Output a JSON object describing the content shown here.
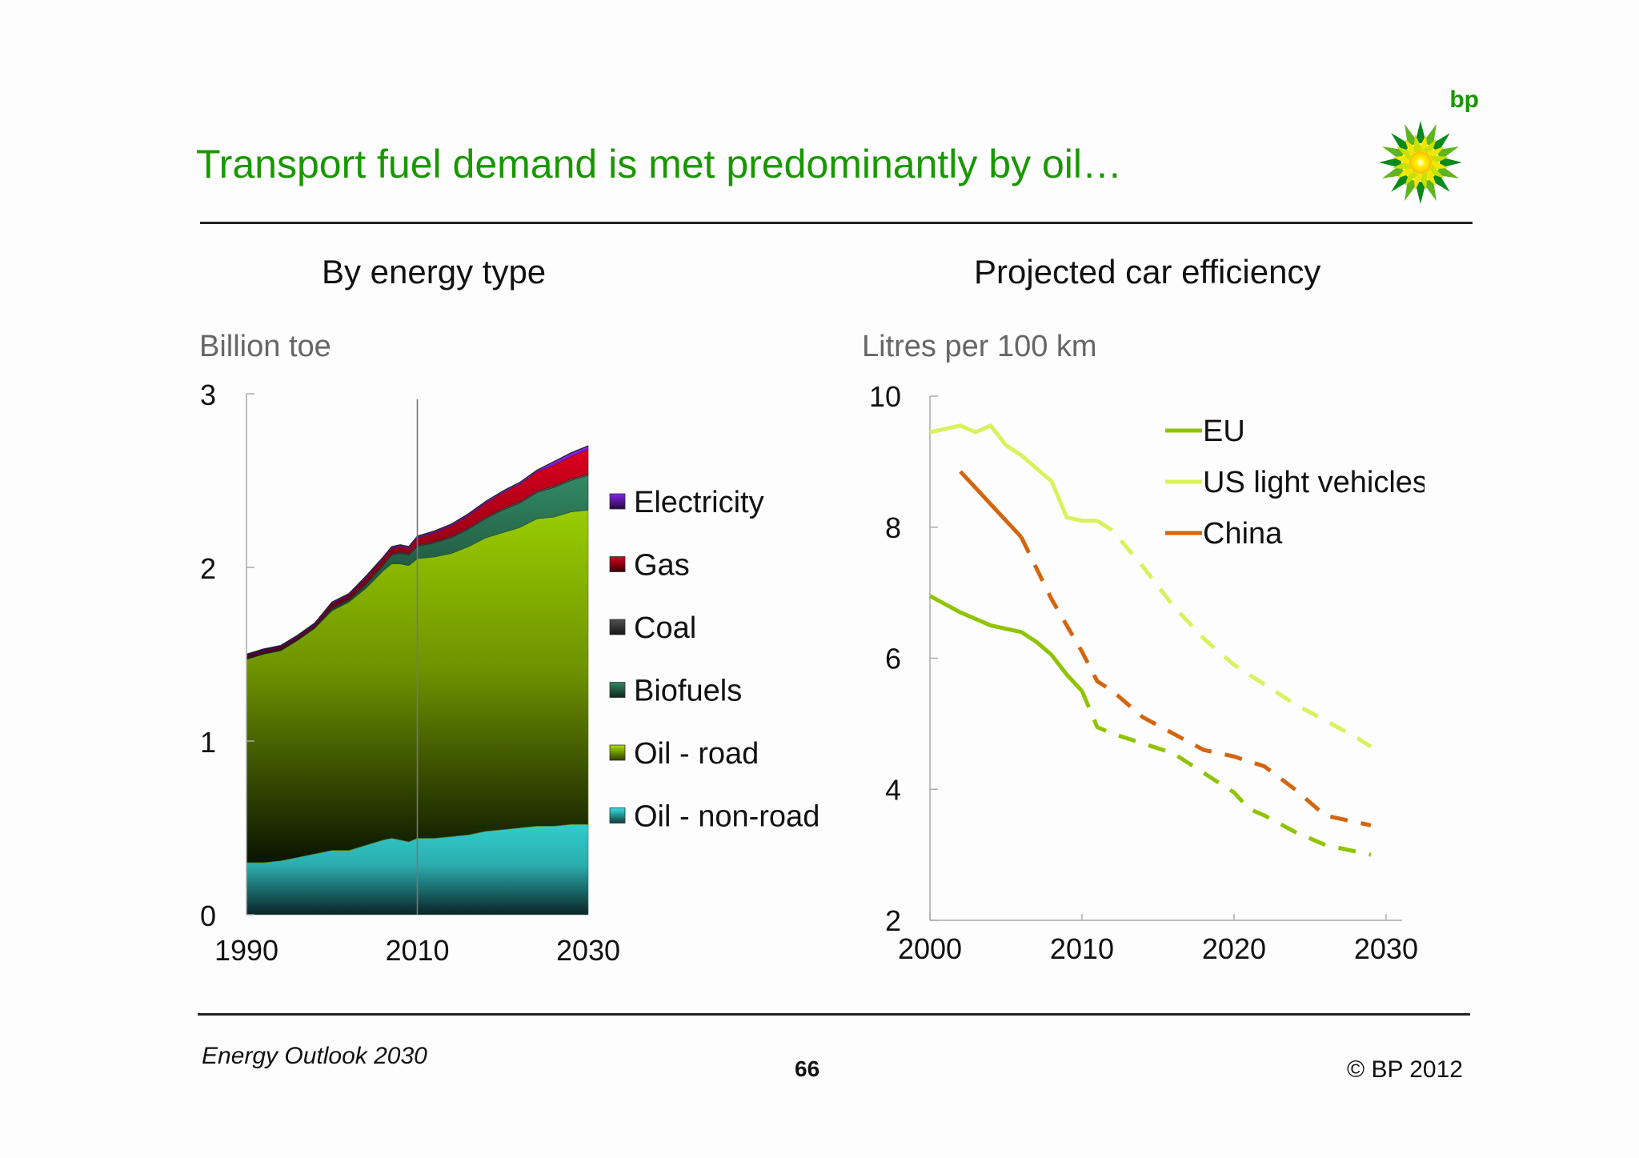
{
  "slide": {
    "title": "Transport fuel demand is met predominantly by oil…",
    "logo_text": "bp",
    "footer_source": "Energy Outlook 2030",
    "page_number": "66",
    "copyright": "© BP 2012"
  },
  "colors": {
    "title_green": "#199700",
    "electricity": "#7a1fd6",
    "gas": "#c8001a",
    "coal": "#4a4a4a",
    "biofuels": "#2e7d5b",
    "oil_road": "#99cc00",
    "oil_non_road": "#33cccc",
    "eu": "#8fc400",
    "us_light_vehicles": "#d8f25c",
    "china": "#d4650e"
  },
  "chart_data": [
    {
      "type": "area",
      "stacked": true,
      "title": "By energy type",
      "ylabel": "Billion toe",
      "x_ticks": [
        "1990",
        "2010",
        "2030"
      ],
      "y_ticks": [
        "0",
        "1",
        "2",
        "3"
      ],
      "xlim": [
        1990,
        2030
      ],
      "ylim": [
        0,
        3
      ],
      "projection_start": 2010,
      "x": [
        1990,
        1992,
        1994,
        1996,
        1998,
        2000,
        2002,
        2004,
        2006,
        2007,
        2008,
        2009,
        2010,
        2012,
        2014,
        2016,
        2018,
        2020,
        2022,
        2024,
        2026,
        2028,
        2030
      ],
      "series": [
        {
          "name": "Oil - non-road",
          "color_key": "oil_non_road",
          "values": [
            0.3,
            0.3,
            0.31,
            0.33,
            0.35,
            0.37,
            0.37,
            0.4,
            0.43,
            0.44,
            0.43,
            0.42,
            0.44,
            0.44,
            0.45,
            0.46,
            0.48,
            0.49,
            0.5,
            0.51,
            0.51,
            0.52,
            0.52
          ]
        },
        {
          "name": "Oil - road",
          "color_key": "oil_road",
          "values": [
            1.17,
            1.2,
            1.21,
            1.25,
            1.3,
            1.38,
            1.43,
            1.48,
            1.55,
            1.58,
            1.59,
            1.59,
            1.61,
            1.62,
            1.63,
            1.66,
            1.69,
            1.71,
            1.73,
            1.77,
            1.78,
            1.8,
            1.81
          ]
        },
        {
          "name": "Biofuels",
          "color_key": "biofuels",
          "values": [
            0.0,
            0.0,
            0.0,
            0.0,
            0.0,
            0.01,
            0.01,
            0.02,
            0.03,
            0.05,
            0.06,
            0.06,
            0.07,
            0.08,
            0.09,
            0.1,
            0.11,
            0.13,
            0.14,
            0.15,
            0.17,
            0.18,
            0.2
          ]
        },
        {
          "name": "Coal",
          "color_key": "coal",
          "values": [
            0.01,
            0.01,
            0.01,
            0.01,
            0.01,
            0.01,
            0.01,
            0.01,
            0.01,
            0.01,
            0.01,
            0.01,
            0.01,
            0.01,
            0.01,
            0.01,
            0.01,
            0.01,
            0.01,
            0.01,
            0.01,
            0.01,
            0.01
          ]
        },
        {
          "name": "Gas",
          "color_key": "gas",
          "values": [
            0.01,
            0.01,
            0.01,
            0.01,
            0.01,
            0.02,
            0.02,
            0.03,
            0.03,
            0.03,
            0.03,
            0.03,
            0.04,
            0.05,
            0.06,
            0.07,
            0.08,
            0.09,
            0.1,
            0.11,
            0.12,
            0.13,
            0.14
          ]
        },
        {
          "name": "Electricity",
          "color_key": "electricity",
          "values": [
            0.01,
            0.01,
            0.01,
            0.01,
            0.01,
            0.01,
            0.01,
            0.01,
            0.01,
            0.01,
            0.01,
            0.01,
            0.01,
            0.01,
            0.01,
            0.01,
            0.01,
            0.01,
            0.01,
            0.01,
            0.02,
            0.02,
            0.02
          ]
        }
      ],
      "legend_order": [
        "Electricity",
        "Gas",
        "Coal",
        "Biofuels",
        "Oil - road",
        "Oil - non-road"
      ],
      "legend_position": "right",
      "grid": false
    },
    {
      "type": "line",
      "title": "Projected car efficiency",
      "ylabel": "Litres per 100 km",
      "x_ticks": [
        "2000",
        "2010",
        "2020",
        "2030"
      ],
      "y_ticks": [
        "2",
        "4",
        "6",
        "8",
        "10"
      ],
      "xlim": [
        2000,
        2030
      ],
      "ylim": [
        2,
        10
      ],
      "line_style_note": "solid = historical, dashed = projection",
      "legend_position": "top-right",
      "grid": false,
      "series": [
        {
          "name": "EU",
          "color_key": "eu",
          "actual_to": 2010,
          "x": [
            2000,
            2002,
            2004,
            2006,
            2007,
            2008,
            2009,
            2010,
            2011,
            2012,
            2014,
            2016,
            2018,
            2020,
            2021,
            2022,
            2024,
            2026,
            2028,
            2029
          ],
          "values": [
            6.95,
            6.7,
            6.5,
            6.4,
            6.25,
            6.05,
            5.75,
            5.5,
            4.95,
            4.85,
            4.7,
            4.55,
            4.25,
            3.95,
            3.7,
            3.6,
            3.35,
            3.15,
            3.05,
            3.0
          ]
        },
        {
          "name": "US light vehicles",
          "color_key": "us_light_vehicles",
          "actual_to": 2011,
          "x": [
            2000,
            2001,
            2002,
            2003,
            2004,
            2005,
            2006,
            2007,
            2008,
            2009,
            2010,
            2011,
            2012,
            2014,
            2016,
            2018,
            2020,
            2022,
            2024,
            2026,
            2028,
            2029
          ],
          "values": [
            9.45,
            9.5,
            9.55,
            9.45,
            9.55,
            9.25,
            9.1,
            8.9,
            8.7,
            8.15,
            8.1,
            8.1,
            7.95,
            7.4,
            6.8,
            6.3,
            5.9,
            5.6,
            5.3,
            5.05,
            4.8,
            4.65
          ]
        },
        {
          "name": "China",
          "color_key": "china",
          "actual_to": 2006,
          "x": [
            2002,
            2003,
            2004,
            2005,
            2006,
            2008,
            2010,
            2011,
            2012,
            2014,
            2016,
            2018,
            2020,
            2022,
            2024,
            2026,
            2028,
            2029
          ],
          "values": [
            8.85,
            8.6,
            8.35,
            8.1,
            7.85,
            6.9,
            6.1,
            5.65,
            5.5,
            5.1,
            4.85,
            4.6,
            4.5,
            4.35,
            4.0,
            3.6,
            3.5,
            3.45
          ]
        }
      ]
    }
  ]
}
